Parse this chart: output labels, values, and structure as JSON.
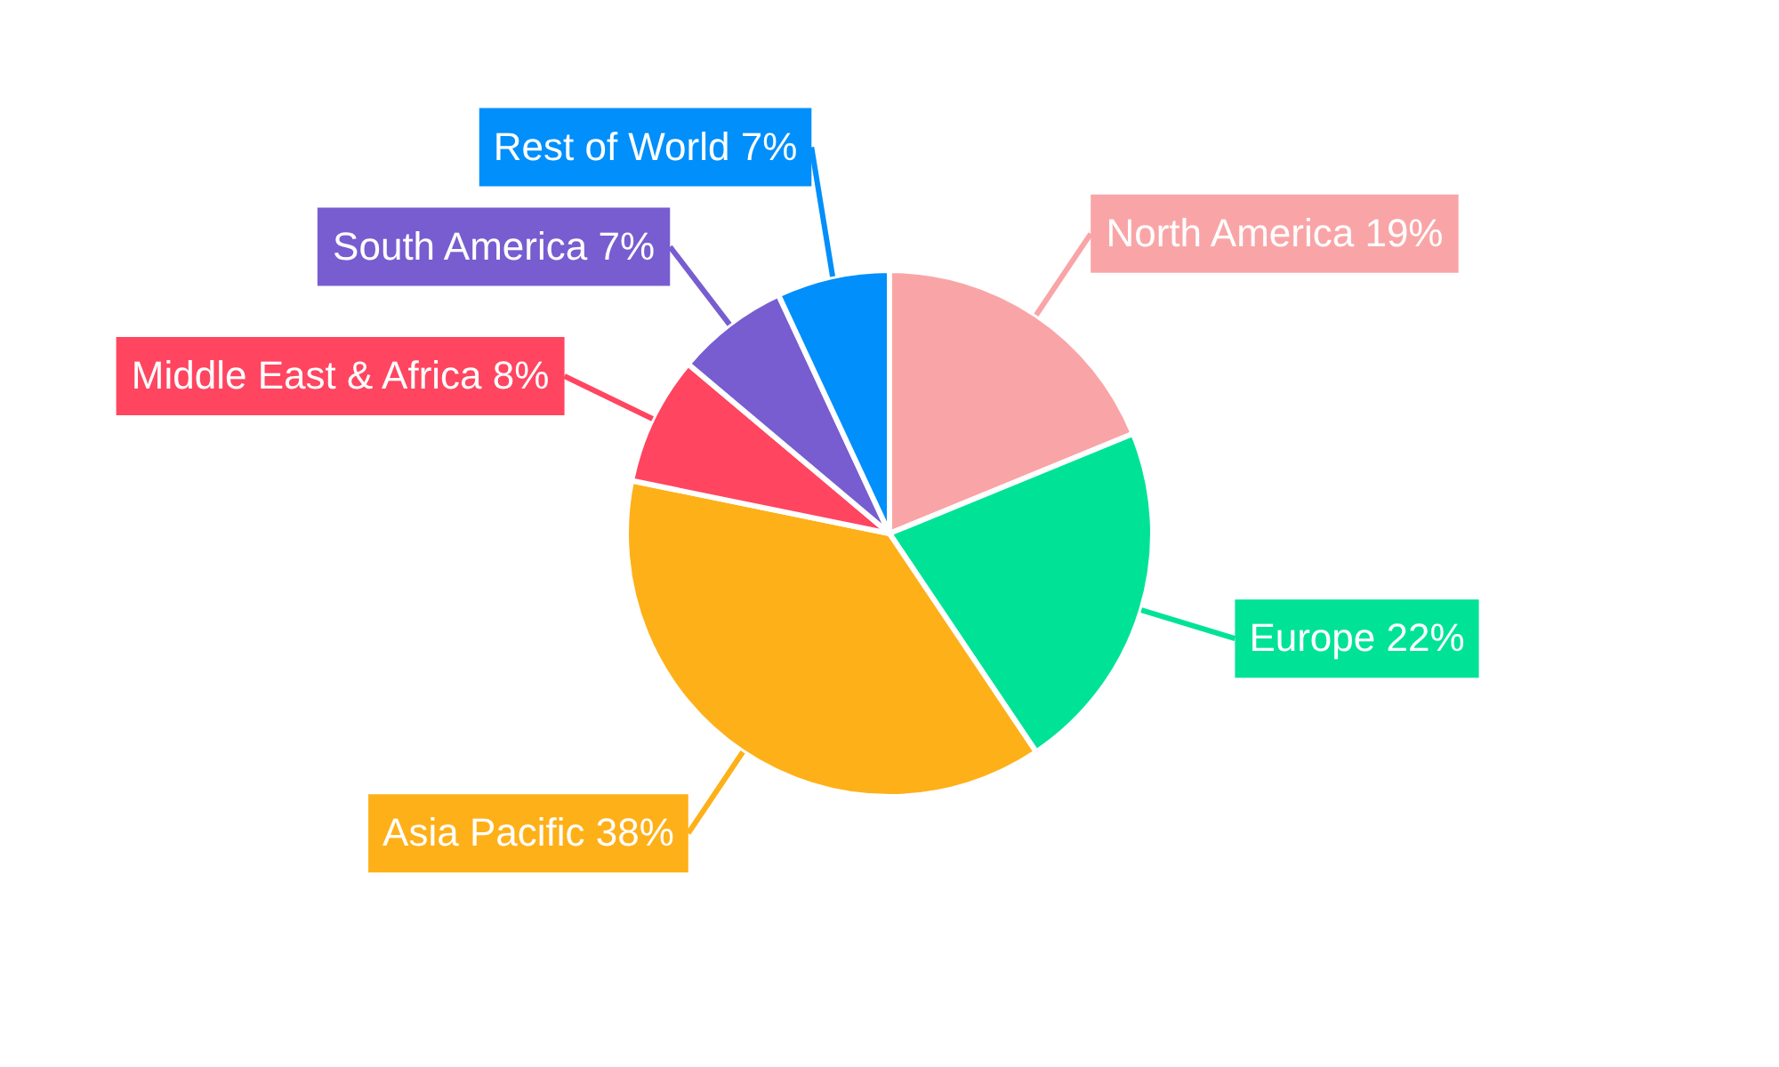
{
  "chart_data": {
    "type": "pie",
    "categories": [
      "North America",
      "Europe",
      "Asia Pacific",
      "Middle East & Africa",
      "South America",
      "Rest of World"
    ],
    "values": [
      19,
      22,
      38,
      8,
      7,
      7
    ],
    "value_labels": [
      "19%",
      "22%",
      "38%",
      "8%",
      "7%",
      "7%"
    ],
    "colors": [
      "#f9a5a7",
      "#00e396",
      "#feb019",
      "#ff4560",
      "#775dd0",
      "#008ffb"
    ]
  }
}
